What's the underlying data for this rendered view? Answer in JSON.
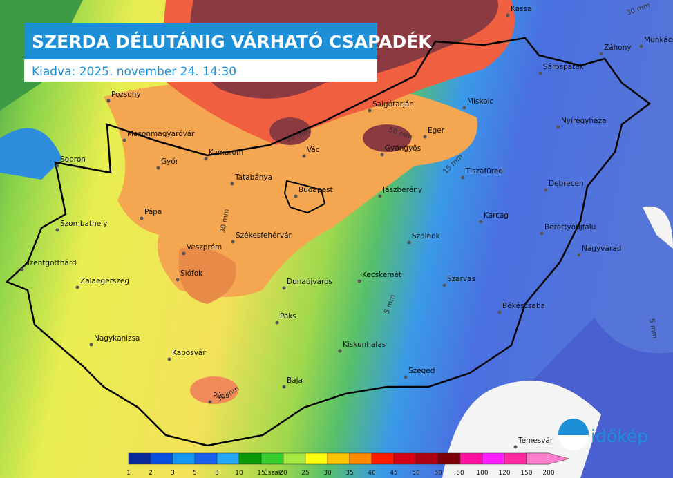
{
  "header": {
    "title": "SZERDA DÉLUTÁNIG VÁRHATÓ CSAPADÉK",
    "subtitle": "Kiadva: 2025. november 24. 14:30"
  },
  "cities": [
    "Kassa",
    "Záhony",
    "Munkács",
    "Sárospatak",
    "Pozsony",
    "Salgótarján",
    "Miskolc",
    "Nyíregyháza",
    "Mosonmagyaróvár",
    "Eger",
    "Gyöngyös",
    "Vác",
    "Komárom",
    "Sopron",
    "Győr",
    "Tiszafüred",
    "Tatabánya",
    "Budapest",
    "Debrecen",
    "Jászberény",
    "Pápa",
    "Karcag",
    "Szombathely",
    "Berettyóújfalu",
    "Szolnok",
    "Székesfehérvár",
    "Nagyvárad",
    "Veszprém",
    "Szentgotthárd",
    "Kecskemét",
    "Siófok",
    "Szarvas",
    "Zalaegerszeg",
    "Dunaújváros",
    "Békéscsaba",
    "Paks",
    "Nagykanizsa",
    "Kiskunhalas",
    "Kaposvár",
    "Szeged",
    "Baja",
    "Pécs",
    "Temesvár"
  ],
  "contour_labels": [
    "30 mm",
    "50 mm",
    "50 mm",
    "15 mm",
    "30 mm",
    "5 mm",
    "5 mm",
    "30 mm"
  ],
  "legend": {
    "values": [
      1,
      2,
      3,
      5,
      8,
      10,
      15,
      20,
      25,
      30,
      35,
      40,
      45,
      50,
      60,
      80,
      100,
      120,
      150,
      200
    ],
    "colors": [
      "#0b2a9c",
      "#0b4fe0",
      "#1696f2",
      "#1a62ee",
      "#26aaf8",
      "#0a9a0a",
      "#38d030",
      "#a6e842",
      "#ffff10",
      "#ffc400",
      "#ff8a00",
      "#ff1a00",
      "#d40014",
      "#ae0012",
      "#7c0008",
      "#ff10a0",
      "#ff20ff",
      "#ff2aa0",
      "#ff66c4",
      "#ff80cc"
    ],
    "direction": "Észak"
  },
  "logo": "időkép"
}
